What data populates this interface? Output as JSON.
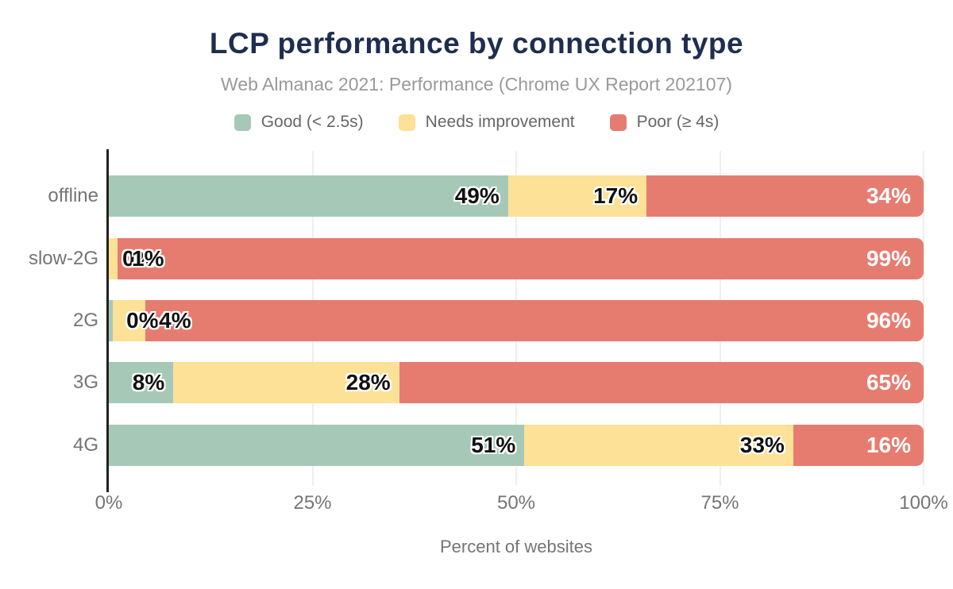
{
  "title": "LCP performance by connection type",
  "subtitle": "Web Almanac 2021: Performance (Chrome UX Report 202107)",
  "colors": {
    "good": "#a6c9b7",
    "needs_improvement": "#fce197",
    "poor": "#e67c70",
    "title_text": "#1f2e4f",
    "axis_text": "#757575",
    "subtitle_text": "#9a9a9a",
    "gridline": "#efefef",
    "axis_line": "#222222"
  },
  "legend": [
    {
      "label": "Good (< 2.5s)",
      "color": "#a6c9b7"
    },
    {
      "label": "Needs improvement",
      "color": "#fce197"
    },
    {
      "label": "Poor (≥ 4s)",
      "color": "#e67c70"
    }
  ],
  "chart_data": {
    "type": "bar",
    "orientation": "horizontal",
    "stacked": true,
    "title": "LCP performance by connection type",
    "subtitle": "Web Almanac 2021: Performance (Chrome UX Report 202107)",
    "categories": [
      "offline",
      "slow-2G",
      "2G",
      "3G",
      "4G"
    ],
    "series": [
      {
        "name": "Good (< 2.5s)",
        "color": "#a6c9b7",
        "values": [
          49,
          0,
          0,
          8,
          51
        ]
      },
      {
        "name": "Needs improvement",
        "color": "#fce197",
        "values": [
          17,
          1,
          4,
          28,
          33
        ]
      },
      {
        "name": "Poor (≥ 4s)",
        "color": "#e67c70",
        "values": [
          34,
          99,
          96,
          65,
          16
        ]
      }
    ],
    "value_label_format": "{value}%",
    "render_fractions": [
      [
        49,
        17,
        34
      ],
      [
        0,
        1.1,
        98.9
      ],
      [
        0.5,
        4,
        95.5
      ],
      [
        8,
        28,
        65
      ],
      [
        51,
        33,
        16
      ]
    ],
    "xlabel": "Percent of websites",
    "x_ticks": [
      "0%",
      "25%",
      "50%",
      "75%",
      "100%"
    ],
    "x_tick_values": [
      0,
      25,
      50,
      75,
      100
    ],
    "xlim": [
      0,
      100
    ],
    "grid": true,
    "legend_position": "top"
  }
}
